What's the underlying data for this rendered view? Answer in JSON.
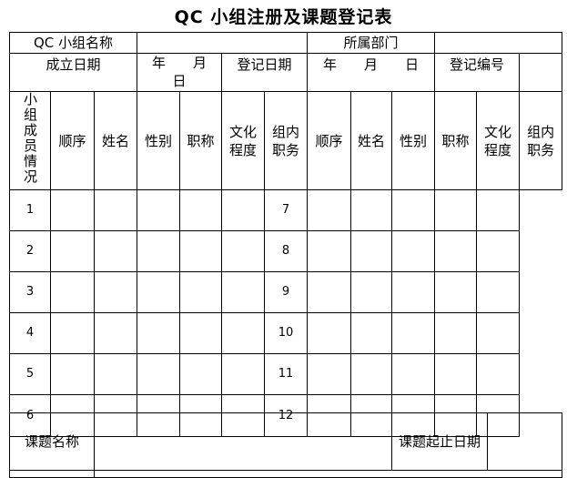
{
  "title": "QC 小组注册及课题登记表",
  "row1": {
    "group_name_label": "QC 小组名称",
    "group_name_value": "",
    "department_label": "所属部门",
    "department_value": ""
  },
  "row2": {
    "founded_label": "成立日期",
    "founded_value": "年　　月　　日",
    "registered_label": "登记日期",
    "registered_value": "年　　月　　日",
    "reg_no_label": "登记编号",
    "reg_no_value": ""
  },
  "members": {
    "section_label": "小组成员情况",
    "headers": [
      "顺序",
      "姓名",
      "性别",
      "职称",
      "文化程度",
      "组内职务",
      "顺序",
      "姓名",
      "性别",
      "职称",
      "文化程度",
      "组内职务"
    ],
    "left_numbers": [
      "1",
      "2",
      "3",
      "4",
      "5",
      "6"
    ],
    "right_numbers": [
      "7",
      "8",
      "9",
      "10",
      "11",
      "12"
    ]
  },
  "topic": {
    "name_label": "课题名称",
    "name_value": "",
    "period_label": "课题起止日期",
    "period_value": ""
  }
}
